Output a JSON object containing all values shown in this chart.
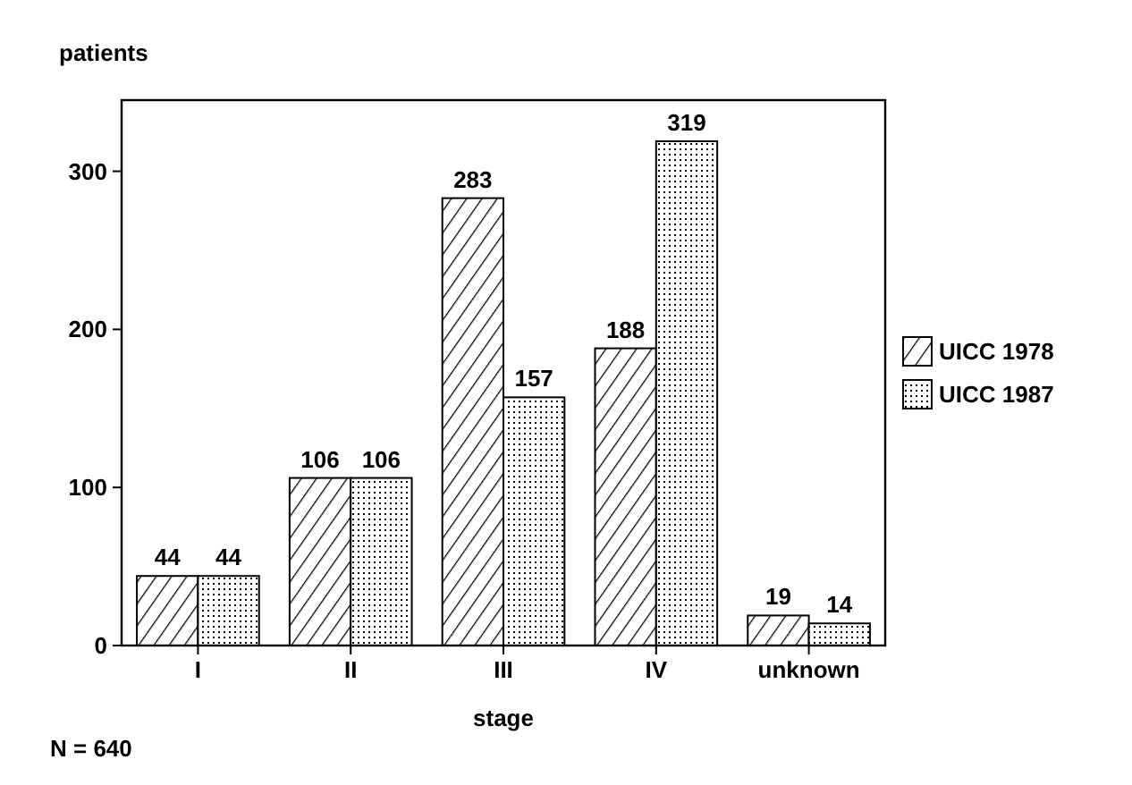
{
  "chart_data": {
    "type": "bar",
    "xlabel": "stage",
    "ylabel": "patients",
    "categories": [
      "I",
      "II",
      "III",
      "IV",
      "unknown"
    ],
    "series": [
      {
        "name": "UICC 1978",
        "color": "#000000",
        "values": [
          44,
          106,
          283,
          188,
          19
        ]
      },
      {
        "name": "UICC 1987",
        "color": "#000000",
        "values": [
          44,
          106,
          157,
          319,
          14
        ]
      }
    ],
    "ylim": [
      0,
      345
    ],
    "yticks": [
      0,
      100,
      200,
      300
    ],
    "data_labels": true,
    "legend": "right",
    "grid": false,
    "annotations": [
      "N = 640"
    ]
  }
}
